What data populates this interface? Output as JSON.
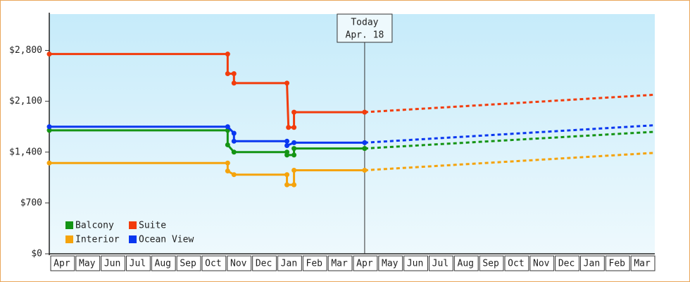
{
  "chart_data": {
    "type": "line",
    "xlim": [
      0,
      24
    ],
    "xticks": [
      {
        "value": 0.5,
        "label": "Apr"
      },
      {
        "value": 1.5,
        "label": "May"
      },
      {
        "value": 2.5,
        "label": "Jun"
      },
      {
        "value": 3.5,
        "label": "Jul"
      },
      {
        "value": 4.5,
        "label": "Aug"
      },
      {
        "value": 5.5,
        "label": "Sep"
      },
      {
        "value": 6.5,
        "label": "Oct"
      },
      {
        "value": 7.5,
        "label": "Nov"
      },
      {
        "value": 8.5,
        "label": "Dec"
      },
      {
        "value": 9.5,
        "label": "Jan"
      },
      {
        "value": 10.5,
        "label": "Feb"
      },
      {
        "value": 11.5,
        "label": "Mar"
      },
      {
        "value": 12.5,
        "label": "Apr"
      },
      {
        "value": 13.5,
        "label": "May"
      },
      {
        "value": 14.5,
        "label": "Jun"
      },
      {
        "value": 15.5,
        "label": "Jul"
      },
      {
        "value": 16.5,
        "label": "Aug"
      },
      {
        "value": 17.5,
        "label": "Sep"
      },
      {
        "value": 18.5,
        "label": "Oct"
      },
      {
        "value": 19.5,
        "label": "Nov"
      },
      {
        "value": 20.5,
        "label": "Dec"
      },
      {
        "value": 21.5,
        "label": "Jan"
      },
      {
        "value": 22.5,
        "label": "Feb"
      },
      {
        "value": 23.5,
        "label": "Mar"
      }
    ],
    "ylim": [
      0,
      3300
    ],
    "yticks": [
      {
        "value": 0,
        "label": "$0"
      },
      {
        "value": 700,
        "label": "$700"
      },
      {
        "value": 1400,
        "label": "$1,400"
      },
      {
        "value": 2100,
        "label": "$2,100"
      },
      {
        "value": 2800,
        "label": "$2,800"
      }
    ],
    "grid": false,
    "legend": "bottom-left",
    "annotation": {
      "x": 12.5,
      "lines": [
        "Today",
        "Apr. 18"
      ]
    },
    "series": [
      {
        "name": "Balcony",
        "color": "#149414",
        "x": [
          0,
          7.07,
          7.07,
          7.32,
          9.42,
          9.42,
          9.7,
          9.7,
          12.5
        ],
        "values": [
          1700,
          1700,
          1500,
          1400,
          1400,
          1360,
          1360,
          1450,
          1450
        ],
        "projection": {
          "x": [
            12.5,
            24
          ],
          "values": [
            1450,
            1680
          ]
        }
      },
      {
        "name": "Suite",
        "color": "#f23c0c",
        "x": [
          0,
          7.07,
          7.07,
          7.32,
          7.32,
          9.42,
          9.48,
          9.7,
          9.7,
          12.5
        ],
        "values": [
          2750,
          2750,
          2480,
          2480,
          2350,
          2350,
          1740,
          1740,
          1950,
          1950
        ],
        "projection": {
          "x": [
            12.5,
            24
          ],
          "values": [
            1950,
            2190
          ]
        }
      },
      {
        "name": "Interior",
        "color": "#f5a30c",
        "x": [
          0,
          7.07,
          7.07,
          7.32,
          9.42,
          9.42,
          9.7,
          9.7,
          12.5
        ],
        "values": [
          1250,
          1250,
          1140,
          1090,
          1090,
          950,
          950,
          1150,
          1150
        ],
        "projection": {
          "x": [
            12.5,
            24
          ],
          "values": [
            1150,
            1390
          ]
        }
      },
      {
        "name": "Ocean View",
        "color": "#0a37f0",
        "x": [
          0,
          7.07,
          7.32,
          7.32,
          9.42,
          9.42,
          9.7,
          12.5
        ],
        "values": [
          1750,
          1750,
          1660,
          1550,
          1550,
          1490,
          1530,
          1530
        ],
        "projection": {
          "x": [
            12.5,
            24
          ],
          "values": [
            1530,
            1770
          ]
        }
      }
    ]
  }
}
